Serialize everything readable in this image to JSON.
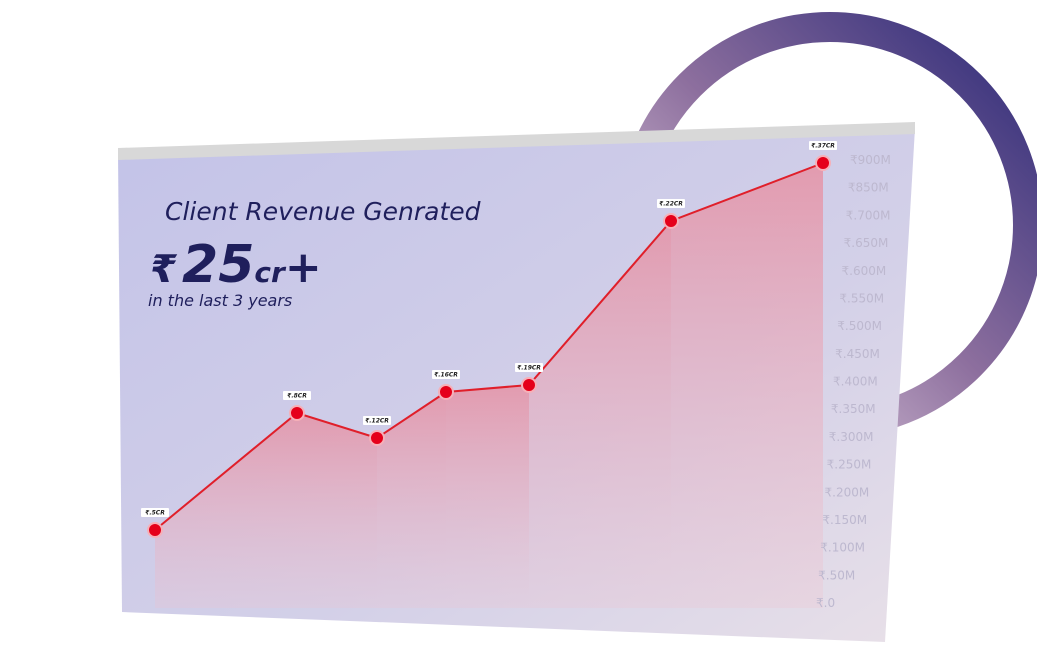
{
  "headline": {
    "title": "Client Revenue Genrated",
    "currency": "₹",
    "amount": "25",
    "unit": "cr",
    "suffix": "+",
    "subtitle": "in the last 3 years"
  },
  "graph": {
    "point_labels": [
      "₹.5CR",
      "₹.8CR",
      "₹.12CR",
      "₹.16CR",
      "₹.19CR",
      "₹.22CR",
      "₹.37CR"
    ],
    "axis_labels": [
      "₹900M",
      "₹850M",
      "₹.700M",
      "₹.650M",
      "₹.600M",
      "₹.550M",
      "₹.500M",
      "₹.450M",
      "₹.400M",
      "₹.350M",
      "₹.300M",
      "₹.250M",
      "₹.200M",
      "₹.150M",
      "₹.100M",
      "₹.50M",
      "₹.0"
    ]
  }
}
